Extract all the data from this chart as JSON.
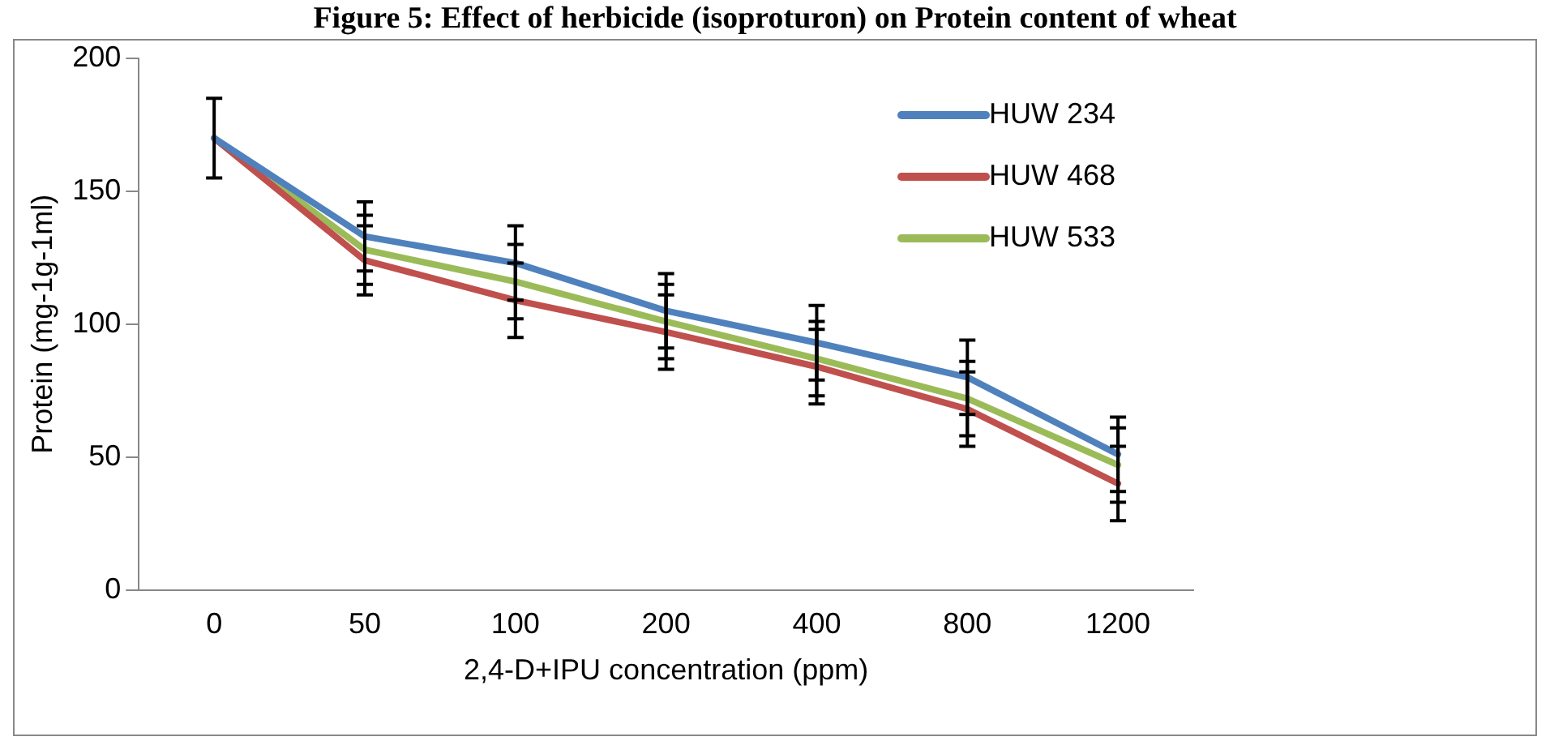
{
  "chart_data": {
    "type": "line",
    "title": "Figure 5: Effect of herbicide (isoproturon) on Protein content of wheat",
    "xlabel": "2,4-D+IPU concentration (ppm)",
    "ylabel": "Protein (mg-1g-1ml)",
    "categories": [
      "0",
      "50",
      "100",
      "200",
      "400",
      "800",
      "1200"
    ],
    "series": [
      {
        "name": "HUW 234",
        "color": "#4f81bd",
        "values": [
          170,
          133,
          123,
          105,
          93,
          80,
          51
        ],
        "errors": [
          15,
          13,
          14,
          14,
          14,
          14,
          14
        ]
      },
      {
        "name": "HUW 468",
        "color": "#c0504d",
        "values": [
          170,
          124,
          109,
          97,
          84,
          68,
          40
        ],
        "errors": [
          null,
          13,
          14,
          14,
          14,
          14,
          14
        ]
      },
      {
        "name": "HUW 533",
        "color": "#9bbb59",
        "values": [
          170,
          128,
          116,
          101,
          87,
          72,
          47
        ],
        "errors": [
          null,
          13,
          14,
          14,
          14,
          14,
          14
        ]
      }
    ],
    "ylim": [
      0,
      200
    ],
    "yticks": [
      0,
      50,
      100,
      150,
      200
    ],
    "grid": false,
    "legend": "top right",
    "marker": "none",
    "line_style": "solid"
  }
}
